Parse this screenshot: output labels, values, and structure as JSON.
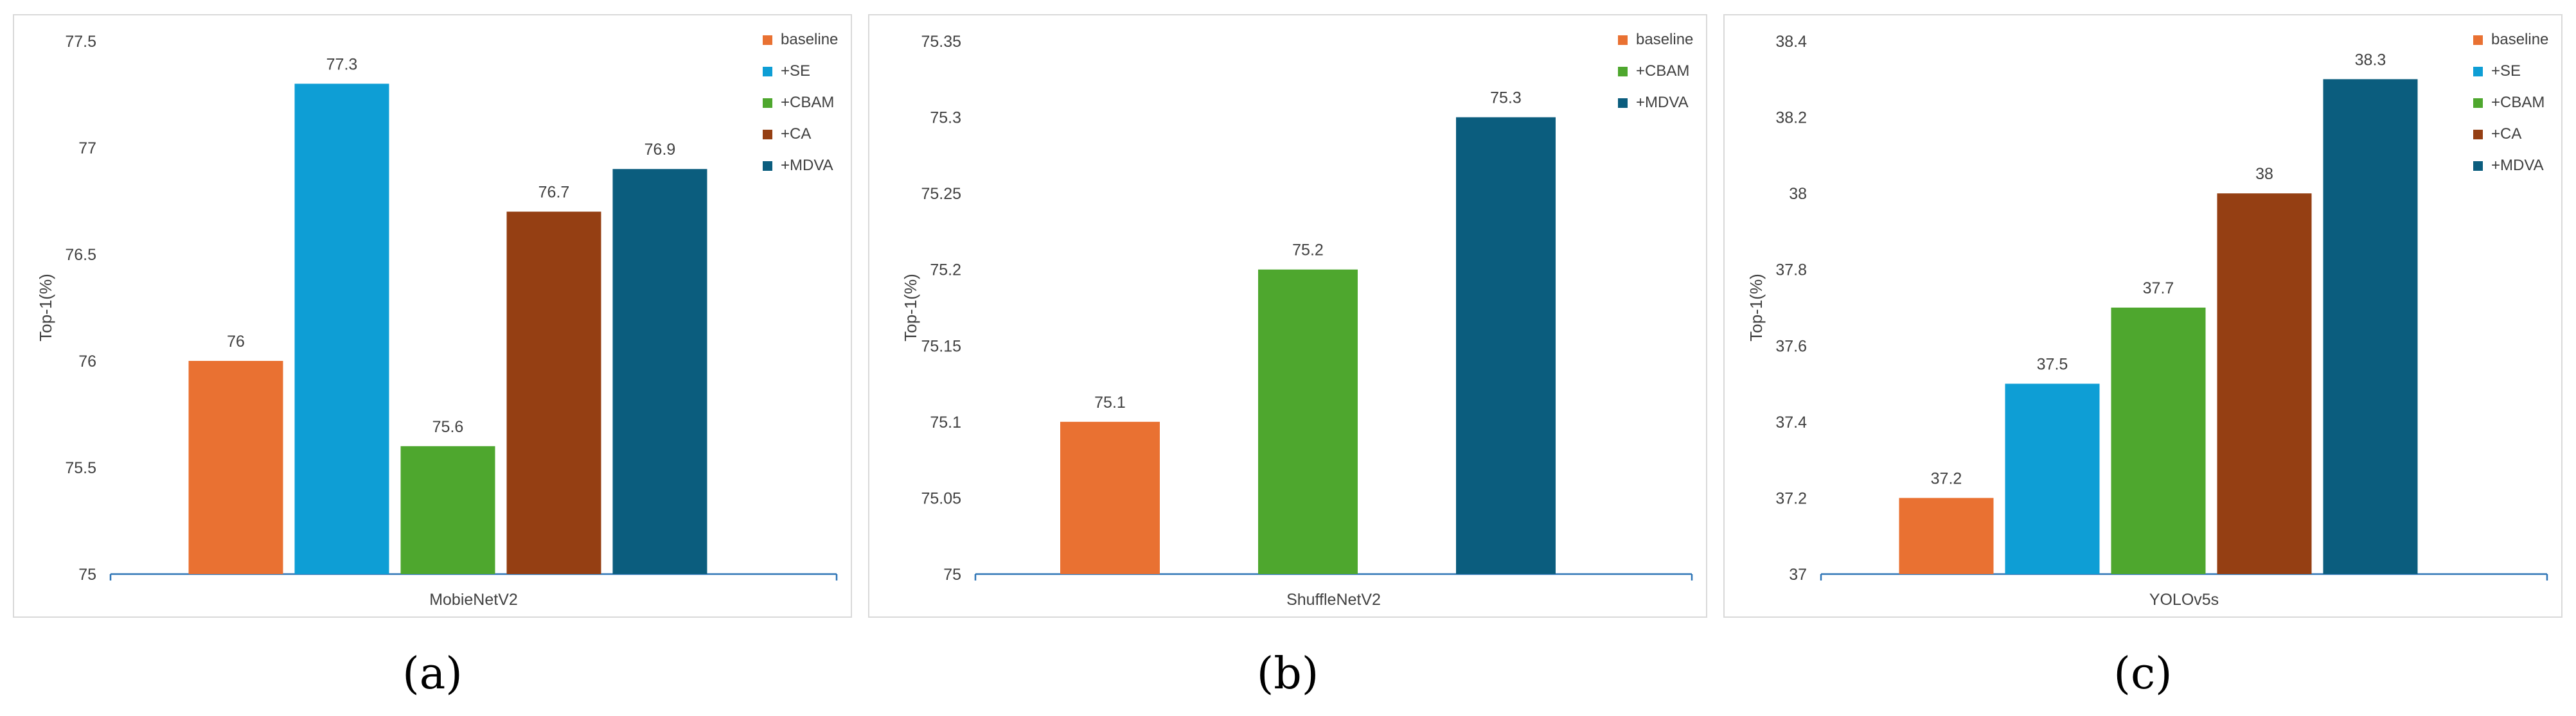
{
  "colors": {
    "baseline": "#E97132",
    "+SE": "#0E9ED5",
    "+CBAM": "#4EA72E",
    "+CA": "#953F13",
    "+MDVA": "#0B5D7E",
    "axis": "#2E75B6",
    "text": "#404040"
  },
  "chart_data": [
    {
      "type": "bar",
      "panel_label": "(a)",
      "categories": [
        "MobieNetV2"
      ],
      "xlabel": "MobieNetV2",
      "ylabel": "Top-1(%)",
      "ylim": [
        75,
        77.5
      ],
      "yticks": [
        "75",
        "75.5",
        "76",
        "76.5",
        "77",
        "77.5"
      ],
      "grid": false,
      "legend_position": "top-right",
      "series": [
        {
          "name": "baseline",
          "values": [
            76
          ],
          "label": "76"
        },
        {
          "name": "+SE",
          "values": [
            77.3
          ],
          "label": "77.3"
        },
        {
          "name": "+CBAM",
          "values": [
            75.6
          ],
          "label": "75.6"
        },
        {
          "name": "+CA",
          "values": [
            76.7
          ],
          "label": "76.7"
        },
        {
          "name": "+MDVA",
          "values": [
            76.9
          ],
          "label": "76.9"
        }
      ]
    },
    {
      "type": "bar",
      "panel_label": "(b)",
      "categories": [
        "ShuffleNetV2"
      ],
      "xlabel": "ShuffleNetV2",
      "ylabel": "Top-1(%)",
      "ylim": [
        75,
        75.35
      ],
      "yticks": [
        "75",
        "75.05",
        "75.1",
        "75.15",
        "75.2",
        "75.25",
        "75.3",
        "75.35"
      ],
      "grid": false,
      "legend_position": "top-right",
      "series": [
        {
          "name": "baseline",
          "values": [
            75.1
          ],
          "label": "75.1"
        },
        {
          "name": "+CBAM",
          "values": [
            75.2
          ],
          "label": "75.2"
        },
        {
          "name": "+MDVA",
          "values": [
            75.3
          ],
          "label": "75.3"
        }
      ]
    },
    {
      "type": "bar",
      "panel_label": "(c)",
      "categories": [
        "YOLOv5s"
      ],
      "xlabel": "YOLOv5s",
      "ylabel": "Top-1(%)",
      "ylim": [
        37,
        38.4
      ],
      "yticks": [
        "37",
        "37.2",
        "37.4",
        "37.6",
        "37.8",
        "38",
        "38.2",
        "38.4"
      ],
      "grid": false,
      "legend_position": "top-right",
      "series": [
        {
          "name": "baseline",
          "values": [
            37.2
          ],
          "label": "37.2"
        },
        {
          "name": "+SE",
          "values": [
            37.5
          ],
          "label": "37.5"
        },
        {
          "name": "+CBAM",
          "values": [
            37.7
          ],
          "label": "37.7"
        },
        {
          "name": "+CA",
          "values": [
            38
          ],
          "label": "38"
        },
        {
          "name": "+MDVA",
          "values": [
            38.3
          ],
          "label": "38.3"
        }
      ]
    }
  ]
}
